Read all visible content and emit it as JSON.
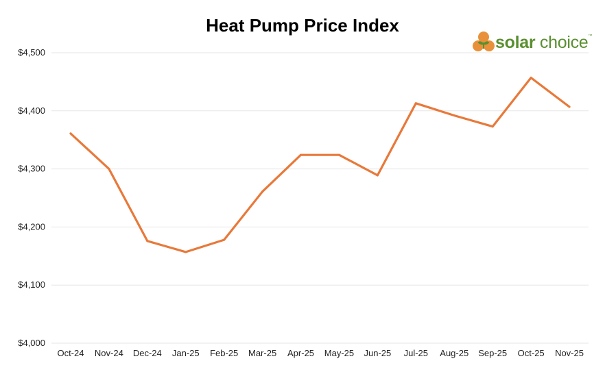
{
  "chart_data": {
    "type": "line",
    "title": "Heat Pump Price Index",
    "xlabel": "",
    "ylabel": "",
    "categories": [
      "Oct-24",
      "Nov-24",
      "Dec-24",
      "Jan-25",
      "Feb-25",
      "Mar-25",
      "Apr-25",
      "May-25",
      "Jun-25",
      "Jul-25",
      "Aug-25",
      "Sep-25",
      "Oct-25",
      "Nov-25"
    ],
    "series": [
      {
        "values": [
          4361,
          4300,
          4176,
          4157,
          4178,
          4261,
          4324,
          4324,
          4289,
          4413,
          4392,
          4373,
          4457,
          4407
        ]
      }
    ],
    "ylim": [
      4000,
      4500
    ],
    "yticks": [
      4000,
      4100,
      4200,
      4300,
      4400,
      4500
    ],
    "ytick_labels": [
      "$4,000",
      "$4,100",
      "$4,200",
      "$4,300",
      "$4,400",
      "$4,500"
    ],
    "grid": true,
    "line_color": "#e8793a",
    "grid_color": "#e6e6e6"
  },
  "logo": {
    "text_bold": "solar",
    "text_regular": "choice",
    "trademark": "™",
    "colors": {
      "orange": "#e8913a",
      "green": "#5a8f2f"
    }
  }
}
